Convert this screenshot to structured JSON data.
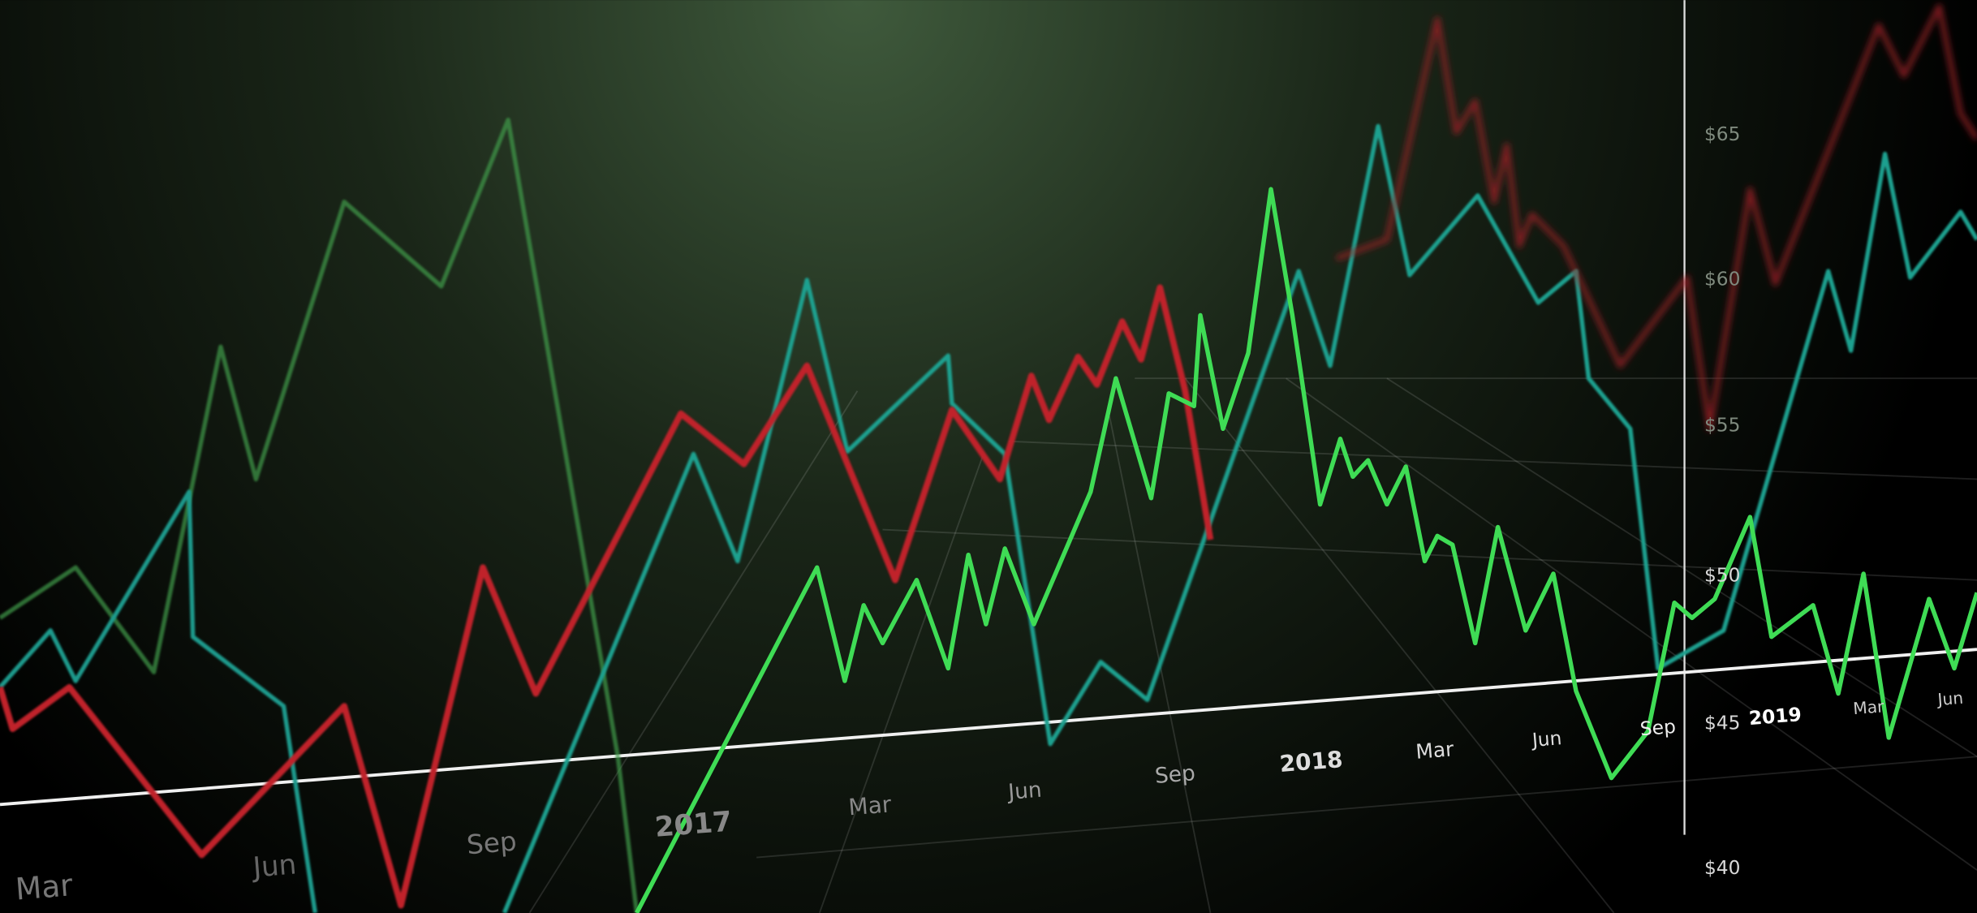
{
  "price_labels": [
    "$65",
    "$60",
    "$55",
    "$50",
    "$45",
    "$40"
  ],
  "time_labels": [
    "Mar",
    "Jun",
    "Sep",
    "2017",
    "Mar",
    "Jun",
    "Sep",
    "2018",
    "Mar",
    "Jun",
    "Sep",
    "2019",
    "Mar",
    "Jun"
  ]
}
